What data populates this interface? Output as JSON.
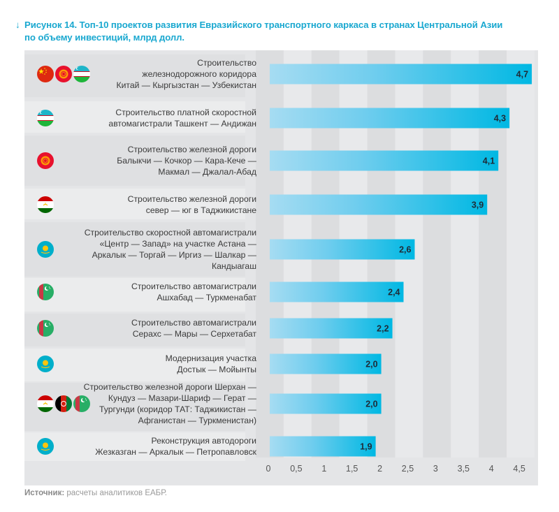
{
  "title": {
    "arrow": "↓",
    "line1": "Рисунок 14. Топ-10 проектов развития Евразийского транспортного каркаса в странах Центральной Азии",
    "line2": "по объему инвестиций, млрд долл."
  },
  "source": {
    "label": "Источник:",
    "text": " расчеты аналитиков ЕАБР."
  },
  "colors": {
    "title": "#1aa8d0",
    "bar_start": "#a6dcf2",
    "bar_end": "#00b8e3",
    "panel": "#e4e5e7",
    "band_light": "#e8e9eb",
    "band_dark": "#dcdddf",
    "value_label": "#1f2a36"
  },
  "chart_data": {
    "type": "bar",
    "orientation": "horizontal",
    "title": "Топ-10 проектов развития Евразийского транспортного каркаса в странах Центральной Азии по объему инвестиций, млрд долл.",
    "xlabel": "",
    "ylabel": "",
    "xlim": [
      0,
      4.7
    ],
    "xticks": [
      0,
      0.5,
      1,
      1.5,
      2,
      2.5,
      3,
      3.5,
      4,
      4.5
    ],
    "xtick_labels": [
      "0",
      "0,5",
      "1",
      "1,5",
      "2",
      "2,5",
      "3",
      "3,5",
      "4",
      "4,5"
    ],
    "grid": "alternating vertical bands every 0.5",
    "legend": "none",
    "categories": [
      [
        "Строительство",
        "железнодорожного коридора",
        "Китай — Кыргызстан — Узбекистан"
      ],
      [
        "Строительство платной скоростной",
        "автомагистрали Ташкент — Андижан"
      ],
      [
        "Строительство железной дороги",
        "Балыкчи — Кочкор — Кара-Кече —",
        "Макмал — Джалал-Абад"
      ],
      [
        "Строительство железной дороги",
        "север — юг в Таджикистане"
      ],
      [
        "Строительство скоростной автомагистрали",
        "«Центр — Запад» на участке Астана —",
        "Аркалык — Торгай — Иргиз — Шалкар —",
        "Кандыагаш"
      ],
      [
        "Строительство автомагистрали",
        "Ашхабад — Туркменабат"
      ],
      [
        "Строительство автомагистрали",
        "Серахс — Мары — Серхетабат"
      ],
      [
        "Модернизация участка",
        "Достык — Мойынты"
      ],
      [
        "Строительство железной дороги Шерхан —",
        "Кундуз — Мазари-Шариф — Герат —",
        "Тургунди (коридор ТАТ: Таджикистан —",
        "Афганистан — Туркменистан)"
      ],
      [
        "Реконструкция автодороги",
        "Жезказган — Аркалык — Петропавловск"
      ]
    ],
    "values": [
      4.7,
      4.3,
      4.1,
      3.9,
      2.6,
      2.4,
      2.2,
      2.0,
      2.0,
      1.9
    ],
    "value_labels": [
      "4,7",
      "4,3",
      "4,1",
      "3,9",
      "2,6",
      "2,4",
      "2,2",
      "2,0",
      "2,0",
      "1,9"
    ],
    "countries": [
      [
        "china-flag",
        "kyrgyzstan-flag",
        "uzbekistan-flag"
      ],
      [
        "uzbekistan-flag"
      ],
      [
        "kyrgyzstan-flag"
      ],
      [
        "tajikistan-flag"
      ],
      [
        "kazakhstan-flag"
      ],
      [
        "turkmenistan-flag"
      ],
      [
        "turkmenistan-flag"
      ],
      [
        "kazakhstan-flag"
      ],
      [
        "tajikistan-flag",
        "afghanistan-flag",
        "turkmenistan-flag"
      ],
      [
        "kazakhstan-flag"
      ]
    ]
  }
}
